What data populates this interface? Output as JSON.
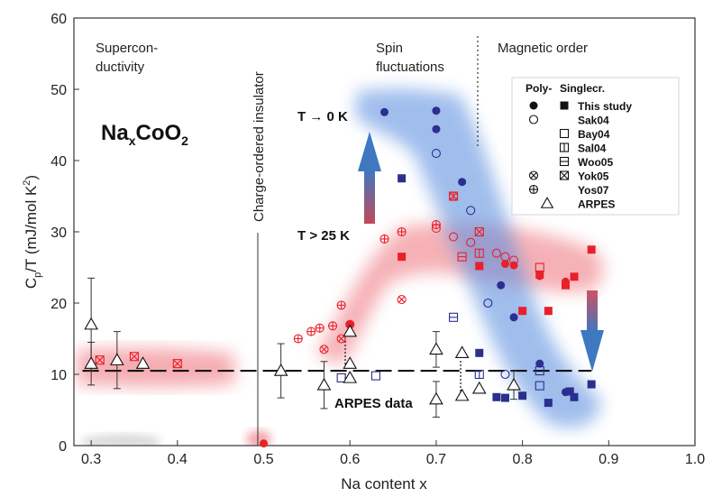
{
  "chart_data": {
    "type": "scatter",
    "xlabel": "Na content x",
    "ylabel_parts": {
      "c": "C",
      "sub": "p",
      "rest": "/T (mJ/mol K",
      "sup": "2",
      "close": ")"
    },
    "xlim": [
      0.28,
      1.0
    ],
    "ylim": [
      0,
      60
    ],
    "x_ticks": [
      0.3,
      0.4,
      0.5,
      0.6,
      0.7,
      0.8,
      0.9,
      1.0
    ],
    "y_ticks": [
      0,
      10,
      20,
      30,
      40,
      50,
      60
    ],
    "x_tick_labels": [
      "0.3",
      "0.4",
      "0.5",
      "0.6",
      "0.7",
      "0.8",
      "0.9",
      "1.0"
    ],
    "y_tick_labels": [
      "0",
      "10",
      "20",
      "30",
      "40",
      "50",
      "60"
    ],
    "formula": {
      "na": "Na",
      "sub": "x",
      "rest": "CoO",
      "sub2": "2"
    },
    "region_labels": {
      "supercond_line1": "Supercon-",
      "supercond_line2": "ductivity",
      "charge_ordered": "Charge-ordered insulator",
      "spin_line1": "Spin",
      "spin_line2": "fluctuations",
      "magnetic": "Magnetic order"
    },
    "annotations": {
      "t0": "T → 0 K",
      "t25": "T > 25 K",
      "arpes": "ARPES data"
    },
    "dashed_level": 10.5,
    "legend": {
      "header_poly": "Poly-",
      "header_single": "Singlecr.",
      "entries": [
        "This study",
        "Sak04",
        "Bay04",
        "Sal04",
        "Woo05",
        "Yok05",
        "Yos07",
        "ARPES"
      ]
    },
    "colors": {
      "blue": "#2b2f8f",
      "red": "#e8202a",
      "blue_band": "#5b8fe0",
      "red_band": "#f0828a",
      "arrow_blue": "#3d78c0",
      "arrow_red": "#d05060"
    },
    "series": [
      {
        "name": "This study",
        "marker": "filled-circle",
        "color": "blue",
        "points": [
          [
            0.64,
            46.8
          ],
          [
            0.7,
            47.0
          ],
          [
            0.7,
            44.4
          ],
          [
            0.73,
            37.0
          ],
          [
            0.775,
            22.5
          ],
          [
            0.79,
            18.0
          ],
          [
            0.82,
            11.5
          ],
          [
            0.85,
            7.5
          ]
        ]
      },
      {
        "name": "This study",
        "marker": "filled-circle",
        "color": "red",
        "points": [
          [
            0.6,
            17.0
          ],
          [
            0.79,
            25.3
          ],
          [
            0.78,
            25.5
          ],
          [
            0.82,
            23.8
          ],
          [
            0.85,
            23.0
          ],
          [
            0.5,
            0.3
          ]
        ]
      },
      {
        "name": "This study",
        "marker": "filled-square",
        "color": "blue",
        "points": [
          [
            0.66,
            37.5
          ],
          [
            0.75,
            13.0
          ],
          [
            0.77,
            6.8
          ],
          [
            0.78,
            6.7
          ],
          [
            0.8,
            7.0
          ],
          [
            0.83,
            6.0
          ],
          [
            0.855,
            7.6
          ],
          [
            0.86,
            6.8
          ],
          [
            0.88,
            8.6
          ]
        ]
      },
      {
        "name": "This study",
        "marker": "filled-square",
        "color": "red",
        "points": [
          [
            0.66,
            26.5
          ],
          [
            0.75,
            25.2
          ],
          [
            0.8,
            18.9
          ],
          [
            0.83,
            18.9
          ],
          [
            0.82,
            24.0
          ],
          [
            0.85,
            22.5
          ],
          [
            0.86,
            23.7
          ],
          [
            0.88,
            27.5
          ]
        ]
      },
      {
        "name": "Sak04",
        "marker": "open-circle",
        "color": "blue",
        "points": [
          [
            0.7,
            41.0
          ],
          [
            0.74,
            33.0
          ],
          [
            0.76,
            20.0
          ],
          [
            0.78,
            10.0
          ]
        ]
      },
      {
        "name": "Sak04",
        "marker": "open-circle",
        "color": "red",
        "points": [
          [
            0.7,
            30.5
          ],
          [
            0.72,
            29.3
          ],
          [
            0.74,
            28.5
          ],
          [
            0.77,
            27.0
          ],
          [
            0.78,
            26.5
          ],
          [
            0.79,
            26.0
          ]
        ]
      },
      {
        "name": "Bay04",
        "marker": "open-square",
        "color": "red",
        "points": [
          [
            0.82,
            25.0
          ]
        ]
      },
      {
        "name": "Bay04",
        "marker": "open-square",
        "color": "blue",
        "points": [
          [
            0.82,
            10.5
          ],
          [
            0.82,
            8.4
          ],
          [
            0.59,
            9.5
          ],
          [
            0.63,
            9.8
          ]
        ]
      },
      {
        "name": "Sal04",
        "marker": "square-vline",
        "color": "red",
        "points": [
          [
            0.72,
            35.0
          ],
          [
            0.75,
            27.0
          ]
        ]
      },
      {
        "name": "Sal04",
        "marker": "square-vline",
        "color": "blue",
        "points": [
          [
            0.75,
            10.0
          ]
        ]
      },
      {
        "name": "Woo05",
        "marker": "square-hline",
        "color": "blue",
        "points": [
          [
            0.72,
            18.0
          ]
        ]
      },
      {
        "name": "Woo05",
        "marker": "square-hline",
        "color": "red",
        "points": [
          [
            0.73,
            26.5
          ]
        ]
      },
      {
        "name": "Yok05",
        "marker": "circle-x",
        "color": "red",
        "points": [
          [
            0.66,
            20.5
          ],
          [
            0.72,
            35.0
          ],
          [
            0.59,
            15.0
          ],
          [
            0.57,
            13.5
          ]
        ]
      },
      {
        "name": "Yok05",
        "marker": "square-x",
        "color": "red",
        "points": [
          [
            0.31,
            12.0
          ],
          [
            0.35,
            12.5
          ],
          [
            0.4,
            11.5
          ],
          [
            0.75,
            30.0
          ]
        ]
      },
      {
        "name": "Yos07",
        "marker": "circle-plus",
        "color": "red",
        "points": [
          [
            0.54,
            15.0
          ],
          [
            0.555,
            16.0
          ],
          [
            0.565,
            16.5
          ],
          [
            0.58,
            16.8
          ],
          [
            0.59,
            19.7
          ],
          [
            0.64,
            29.0
          ],
          [
            0.66,
            30.0
          ],
          [
            0.7,
            31.0
          ],
          [
            0.6,
            17.0
          ]
        ]
      },
      {
        "name": "ARPES",
        "marker": "open-triangle",
        "color": "black",
        "points": [
          [
            0.3,
            17.0
          ],
          [
            0.3,
            11.5
          ],
          [
            0.33,
            12.0
          ],
          [
            0.36,
            11.5
          ],
          [
            0.52,
            10.5
          ],
          [
            0.57,
            8.5
          ],
          [
            0.6,
            9.5
          ],
          [
            0.6,
            11.5
          ],
          [
            0.6,
            16.0
          ],
          [
            0.7,
            13.5
          ],
          [
            0.7,
            6.5
          ],
          [
            0.73,
            13.0
          ],
          [
            0.73,
            7.0
          ],
          [
            0.75,
            8.0
          ],
          [
            0.79,
            8.5
          ]
        ],
        "error": [
          6.5,
          3.0,
          4.0,
          0,
          3.8,
          3.3,
          0,
          0,
          0,
          2.5,
          2.5,
          0,
          0,
          0,
          2.0
        ]
      }
    ]
  }
}
